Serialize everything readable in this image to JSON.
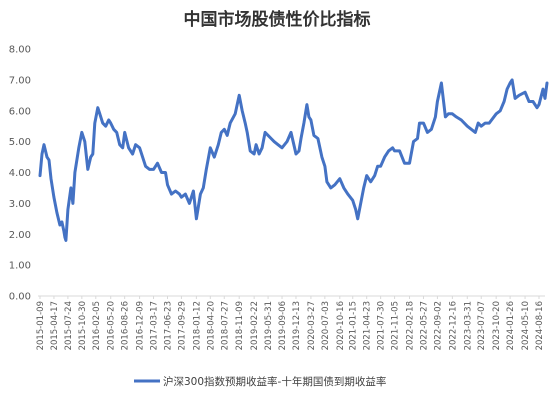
{
  "chart_data": {
    "type": "line",
    "title": "中国市场股债性价比指标",
    "xlabel": "",
    "ylabel": "",
    "ylim": [
      0,
      8
    ],
    "yticks": [
      "0.00",
      "1.00",
      "2.00",
      "3.00",
      "4.00",
      "5.00",
      "6.00",
      "7.00",
      "8.00"
    ],
    "grid": false,
    "legend_position": "bottom",
    "series_color": "#4472C4",
    "x_ticks": [
      "2015-01-09",
      "2015-04-17",
      "2015-07-24",
      "2015-10-30",
      "2016-02-05",
      "2016-05-20",
      "2016-08-26",
      "2016-12-09",
      "2017-03-17",
      "2017-06-23",
      "2017-09-29",
      "2018-01-12",
      "2018-04-20",
      "2018-07-27",
      "2018-11-09",
      "2019-02-22",
      "2019-05-31",
      "2019-09-06",
      "2019-12-13",
      "2020-03-27",
      "2020-07-03",
      "2020-10-16",
      "2021-01-15",
      "2021-04-23",
      "2021-07-30",
      "2021-11-05",
      "2022-02-18",
      "2022-05-27",
      "2022-09-02",
      "2022-12-16",
      "2023-03-31",
      "2023-07-07",
      "2023-10-20",
      "2024-01-26",
      "2024-05-10",
      "2024-08-16"
    ],
    "series": [
      {
        "name": "沪深300指数预期收益率-十年期国债到期收益率",
        "x": [
          "2015-01-09",
          "2015-01-23",
          "2015-02-06",
          "2015-02-27",
          "2015-03-13",
          "2015-03-27",
          "2015-04-17",
          "2015-05-08",
          "2015-05-29",
          "2015-06-12",
          "2015-06-26",
          "2015-07-03",
          "2015-07-10",
          "2015-07-24",
          "2015-08-14",
          "2015-08-28",
          "2015-09-11",
          "2015-10-09",
          "2015-10-30",
          "2015-11-20",
          "2015-12-11",
          "2015-12-31",
          "2016-01-15",
          "2016-01-29",
          "2016-02-19",
          "2016-03-04",
          "2016-03-25",
          "2016-04-15",
          "2016-05-06",
          "2016-05-20",
          "2016-06-10",
          "2016-07-01",
          "2016-07-22",
          "2016-08-12",
          "2016-08-26",
          "2016-09-23",
          "2016-10-21",
          "2016-11-11",
          "2016-12-09",
          "2016-12-30",
          "2017-01-20",
          "2017-02-17",
          "2017-03-17",
          "2017-04-14",
          "2017-05-12",
          "2017-06-09",
          "2017-06-23",
          "2017-07-21",
          "2017-08-18",
          "2017-09-15",
          "2017-09-29",
          "2017-10-27",
          "2017-11-24",
          "2017-12-22",
          "2018-01-12",
          "2018-01-26",
          "2018-02-09",
          "2018-03-02",
          "2018-03-23",
          "2018-04-20",
          "2018-05-18",
          "2018-06-15",
          "2018-07-06",
          "2018-07-27",
          "2018-08-17",
          "2018-09-07",
          "2018-10-12",
          "2018-10-26",
          "2018-11-09",
          "2018-11-30",
          "2018-12-21",
          "2019-01-04",
          "2019-01-25",
          "2019-02-22",
          "2019-03-08",
          "2019-03-29",
          "2019-04-19",
          "2019-05-10",
          "2019-05-31",
          "2019-06-21",
          "2019-07-12",
          "2019-08-09",
          "2019-09-06",
          "2019-10-11",
          "2019-11-08",
          "2019-12-13",
          "2020-01-03",
          "2020-01-17",
          "2020-02-07",
          "2020-02-28",
          "2020-03-13",
          "2020-03-27",
          "2020-04-17",
          "2020-05-15",
          "2020-06-12",
          "2020-07-03",
          "2020-07-17",
          "2020-08-14",
          "2020-09-11",
          "2020-10-16",
          "2020-11-13",
          "2020-12-11",
          "2021-01-15",
          "2021-02-05",
          "2021-02-19",
          "2021-03-12",
          "2021-04-02",
          "2021-04-23",
          "2021-05-21",
          "2021-06-18",
          "2021-07-09",
          "2021-07-30",
          "2021-08-27",
          "2021-09-24",
          "2021-10-22",
          "2021-11-05",
          "2021-12-10",
          "2022-01-14",
          "2022-02-18",
          "2022-03-18",
          "2022-04-15",
          "2022-04-29",
          "2022-05-27",
          "2022-06-24",
          "2022-07-22",
          "2022-08-19",
          "2022-09-02",
          "2022-09-30",
          "2022-10-28",
          "2022-11-18",
          "2022-12-16",
          "2023-01-13",
          "2023-02-17",
          "2023-03-31",
          "2023-04-28",
          "2023-05-26",
          "2023-06-16",
          "2023-07-07",
          "2023-08-04",
          "2023-09-01",
          "2023-10-20",
          "2023-11-17",
          "2023-12-15",
          "2024-01-05",
          "2024-01-26",
          "2024-02-09",
          "2024-03-01",
          "2024-03-29",
          "2024-05-10",
          "2024-06-07",
          "2024-07-05",
          "2024-08-02",
          "2024-08-16",
          "2024-09-13",
          "2024-09-27",
          "2024-10-11"
        ],
        "values": [
          3.9,
          4.6,
          4.9,
          4.5,
          4.4,
          3.8,
          3.2,
          2.7,
          2.3,
          2.4,
          2.1,
          1.9,
          1.8,
          2.8,
          3.5,
          3.0,
          4.0,
          4.8,
          5.3,
          5.0,
          4.1,
          4.5,
          4.6,
          5.6,
          6.1,
          5.9,
          5.6,
          5.5,
          5.7,
          5.6,
          5.4,
          5.3,
          4.9,
          4.8,
          5.3,
          4.8,
          4.6,
          4.9,
          4.8,
          4.5,
          4.2,
          4.1,
          4.1,
          4.3,
          4.0,
          4.0,
          3.6,
          3.3,
          3.4,
          3.3,
          3.2,
          3.3,
          3.0,
          3.4,
          2.5,
          2.9,
          3.3,
          3.5,
          4.1,
          4.8,
          4.5,
          4.9,
          5.3,
          5.4,
          5.2,
          5.6,
          5.9,
          6.2,
          6.5,
          6.0,
          5.6,
          5.3,
          4.7,
          4.6,
          4.9,
          4.6,
          4.8,
          5.3,
          5.2,
          5.1,
          5.0,
          4.9,
          4.8,
          5.0,
          5.3,
          4.6,
          4.7,
          5.1,
          5.6,
          6.2,
          5.8,
          5.7,
          5.2,
          5.1,
          4.5,
          4.2,
          3.7,
          3.5,
          3.6,
          3.8,
          3.5,
          3.3,
          3.1,
          2.8,
          2.5,
          3.0,
          3.5,
          3.9,
          3.7,
          3.9,
          4.2,
          4.2,
          4.5,
          4.7,
          4.8,
          4.7,
          4.7,
          4.3,
          4.3,
          5.0,
          5.1,
          5.6,
          5.6,
          5.3,
          5.4,
          5.8,
          6.3,
          6.9,
          5.8,
          5.9,
          5.9,
          5.8,
          5.7,
          5.5,
          5.4,
          5.3,
          5.6,
          5.5,
          5.6,
          5.6,
          5.9,
          6.0,
          6.3,
          6.7,
          6.9,
          7.0,
          6.4,
          6.5,
          6.6,
          6.3,
          6.3,
          6.1,
          6.2,
          6.7,
          6.4,
          6.9
        ]
      }
    ]
  }
}
